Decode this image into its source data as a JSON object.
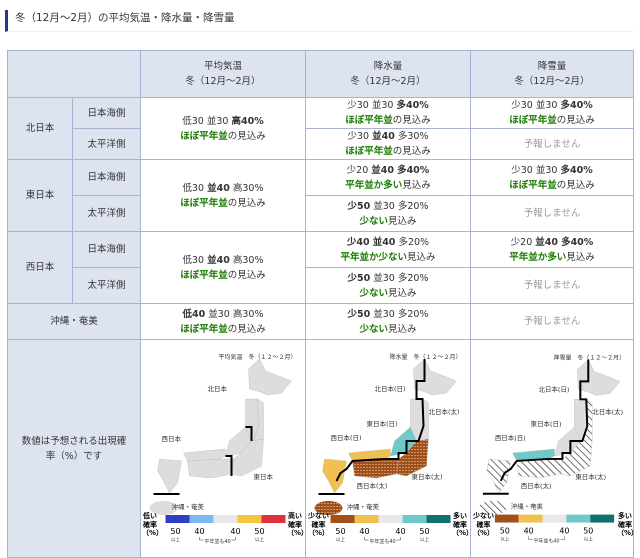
{
  "title": "冬（12月～2月）の平均気温・降水量・降雪量",
  "headers": [
    {
      "l1": "平均気温",
      "l2": "冬（12月～2月）"
    },
    {
      "l1": "降水量",
      "l2": "冬（12月～2月）"
    },
    {
      "l1": "降雪量",
      "l2": "冬（12月～2月）"
    }
  ],
  "regions": {
    "north": "北日本",
    "east": "東日本",
    "west": "西日本",
    "okinawa": "沖縄・奄美",
    "sea": "日本海側",
    "pacific": "太平洋側"
  },
  "suffix": "の見込み",
  "suffix2": "見込み",
  "no_forecast": "予報しません",
  "temp": {
    "north": {
      "probs": [
        "低30",
        "並30",
        "高40%"
      ],
      "verdict": "ほぼ平年並"
    },
    "east": {
      "probs": [
        "低30",
        "並40",
        "高30%"
      ],
      "verdict": "ほぼ平年並"
    },
    "west": {
      "probs": [
        "低30",
        "並40",
        "高30%"
      ],
      "verdict": "ほぼ平年並"
    },
    "okinawa": {
      "probs": [
        "低40",
        "並30",
        "高30%"
      ],
      "verdict": "ほぼ平年並"
    }
  },
  "precip": {
    "north_sea": {
      "probs": [
        "少30",
        "並30",
        "多40%"
      ],
      "verdict": "ほぼ平年並"
    },
    "north_pac": {
      "probs": [
        "少30",
        "並40",
        "多30%"
      ],
      "verdict": "ほぼ平年並"
    },
    "east_sea": {
      "probs": [
        "少20",
        "並40",
        "多40%"
      ],
      "verdict": "平年並か多い"
    },
    "east_pac": {
      "probs": [
        "少50",
        "並30",
        "多20%"
      ],
      "verdict": "少ない"
    },
    "west_sea": {
      "probs": [
        "少40",
        "並40",
        "多20%"
      ],
      "verdict": "平年並か少ない"
    },
    "west_pac": {
      "probs": [
        "少50",
        "並30",
        "多20%"
      ],
      "verdict": "少ない"
    },
    "okinawa": {
      "probs": [
        "少50",
        "並30",
        "多20%"
      ],
      "verdict": "少ない"
    }
  },
  "snow": {
    "north_sea": {
      "probs": [
        "少30",
        "並30",
        "多40%"
      ],
      "verdict": "ほぼ平年並"
    },
    "east_sea": {
      "probs": [
        "少30",
        "並30",
        "多40%"
      ],
      "verdict": "ほぼ平年並"
    },
    "west_sea": {
      "probs": [
        "少20",
        "並40",
        "多40%"
      ],
      "verdict": "平年並か多い"
    }
  },
  "map_note": "数値は予想される出現確率（%）です",
  "maps": {
    "temp": {
      "title": "平均気温　冬（１２～２月）",
      "labels": [
        "北日本",
        "西日本",
        "東日本",
        "沖縄・奄美"
      ]
    },
    "precip": {
      "title": "降水量　冬（１２～２月）",
      "labels": [
        "北日本(日)",
        "北日本(太)",
        "東日本(日)",
        "西日本(日)",
        "東日本(太)",
        "西日本(太)",
        "沖縄・奄美"
      ]
    },
    "snow": {
      "title": "降雪量　冬（１２～２月）",
      "labels": [
        "北日本(日)",
        "北日本(太)",
        "東日本(日)",
        "西日本(日)",
        "東日本(太)",
        "西日本(太)",
        "沖縄・奄美"
      ]
    }
  },
  "legend": {
    "temp": {
      "left": "低い確率（%）",
      "right": "高い確率（%）",
      "colors": [
        "#3040c0",
        "#7fb8f0",
        "#e8e8e8",
        "#f5c542",
        "#e03040"
      ]
    },
    "precip": {
      "left": "少ない確率（%）",
      "right": "多い確率（%）",
      "colors": [
        "#a0501a",
        "#f0c050",
        "#e8e8e8",
        "#70c8c8",
        "#107070"
      ]
    },
    "ticks": [
      "50",
      "40",
      "40",
      "50"
    ],
    "ijo": "以上",
    "normal": "平年並も40"
  },
  "colors": {
    "green": "#1a7a00",
    "header": "#dde3ef",
    "border": "#a8b3d3",
    "accent": "#1f3a8a"
  }
}
